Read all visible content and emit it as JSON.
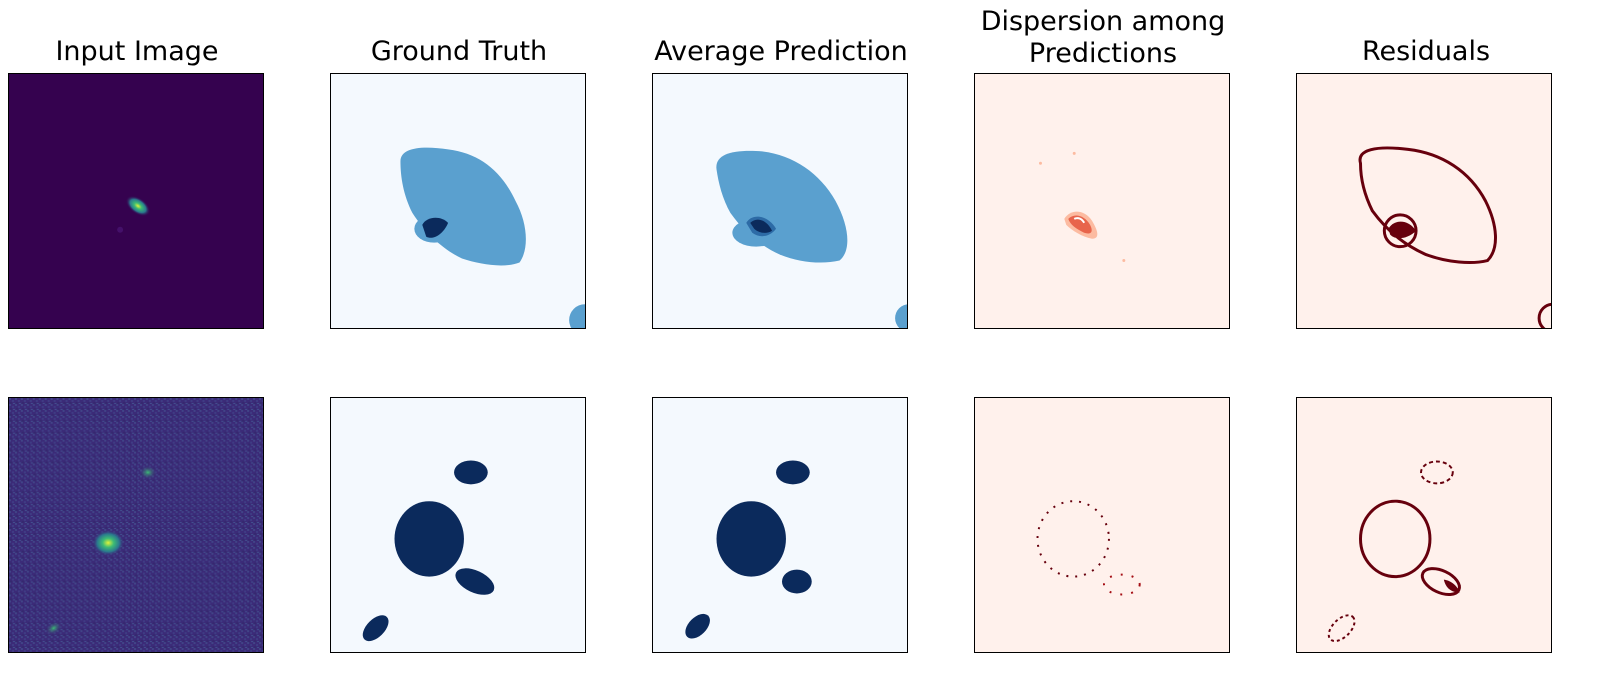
{
  "figure": {
    "column_titles": [
      "Input Image",
      "Ground Truth",
      "Average Prediction",
      "Dispersion among Predictions",
      "Residuals"
    ],
    "title_line_breaks": {
      "3": [
        "Dispersion among",
        "Predictions"
      ]
    }
  },
  "colors": {
    "viridis_bg": "#35024f",
    "viridis_bg_noisy": "#3b2b78",
    "viridis_bright": "#b8de29",
    "viridis_mid": "#27ad81",
    "blues_bg": "#f4f9fe",
    "blues_light": "#5aa0cf",
    "blues_dark": "#0b2a5c",
    "reds_bg": "#fff1ec",
    "reds_mid": "#e8644b",
    "reds_dark": "#67000d"
  },
  "rows": [
    {
      "name": "row-1",
      "panels": [
        "input",
        "ground-truth",
        "average-prediction",
        "dispersion",
        "residuals"
      ]
    },
    {
      "name": "row-2",
      "panels": [
        "input",
        "ground-truth",
        "average-prediction",
        "dispersion",
        "residuals"
      ]
    }
  ]
}
